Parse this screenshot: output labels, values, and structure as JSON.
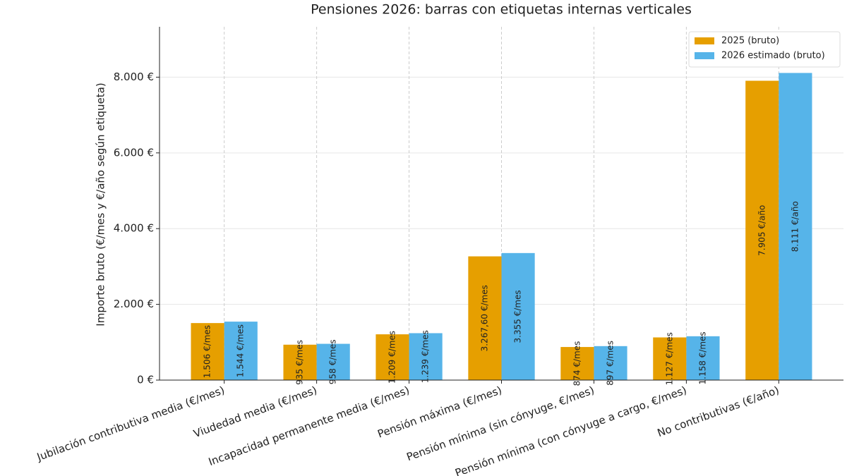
{
  "chart_data": {
    "type": "bar",
    "title": "Pensiones 2026: barras con etiquetas internas verticales",
    "y_label": "Importe bruto (€/mes y €/año según etiqueta)",
    "categories": [
      "Jubilación contributiva media (€/mes)",
      "Viudedad media (€/mes)",
      "Incapacidad permanente media (€/mes)",
      "Pensión máxima (€/mes)",
      "Pensión mínima (sin cónyuge, €/mes)",
      "Pensión mínima (con cónyuge a cargo, €/mes)",
      "No contributivas (€/año)"
    ],
    "series": [
      {
        "name": "2025 (bruto)",
        "color": "#E69F00",
        "values": [
          1506,
          935,
          1209,
          3267.6,
          874,
          1127,
          7905
        ],
        "value_labels": [
          "1.506 €/mes",
          "935 €/mes",
          "1.209 €/mes",
          "3.267,60 €/mes",
          "874 €/mes",
          "1.127 €/mes",
          "7.905 €/año"
        ]
      },
      {
        "name": "2026 estimado (bruto)",
        "color": "#56B4E9",
        "values": [
          1544,
          958,
          1239,
          3355,
          897,
          1158,
          8111
        ],
        "value_labels": [
          "1.544 €/mes",
          "958 €/mes",
          "1.239 €/mes",
          "3.355 €/mes",
          "897 €/mes",
          "1.158 €/mes",
          "8.111 €/año"
        ]
      }
    ],
    "ylim": [
      0,
      9330
    ],
    "yticks": [
      {
        "value": 0,
        "label": "0 €"
      },
      {
        "value": 2000,
        "label": "2.000 €"
      },
      {
        "value": 4000,
        "label": "4.000 €"
      },
      {
        "value": 6000,
        "label": "6.000 €"
      },
      {
        "value": 8000,
        "label": "8.000 €"
      }
    ],
    "grid": true,
    "legend": "upper right"
  }
}
